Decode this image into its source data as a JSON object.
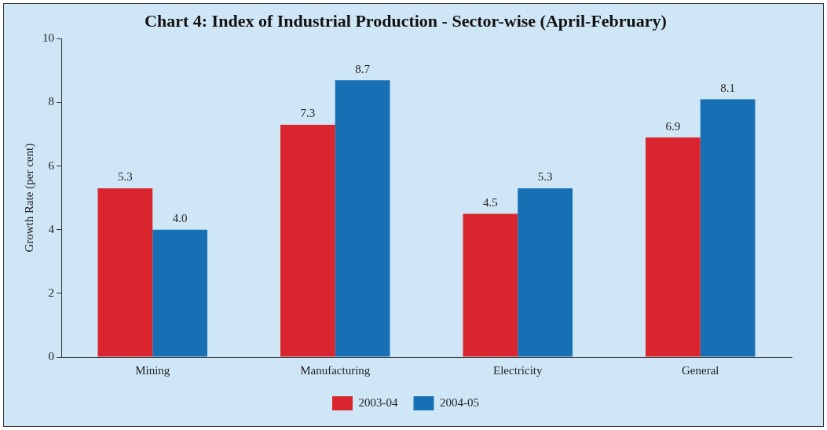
{
  "chart_data": {
    "type": "bar",
    "title": "Chart 4: Index of Industrial Production - Sector-wise (April-February)",
    "ylabel": "Growth Rate (per cent)",
    "categories": [
      "Mining",
      "Manufacturing",
      "Electricity",
      "General"
    ],
    "series": [
      {
        "name": "2003-04",
        "color": "#d9252d",
        "values": [
          5.3,
          7.3,
          4.5,
          6.9
        ],
        "value_labels": [
          "5.3",
          "7.3",
          "4.5",
          "6.9"
        ]
      },
      {
        "name": "2004-05",
        "color": "#1870b4",
        "values": [
          4.0,
          8.7,
          5.3,
          8.1
        ],
        "value_labels": [
          "4.0",
          "8.7",
          "5.3",
          "8.1"
        ]
      }
    ],
    "ylim": [
      0,
      10
    ],
    "yticks": [
      0,
      2,
      4,
      6,
      8,
      10
    ],
    "grid": false,
    "legend": "bottom"
  }
}
